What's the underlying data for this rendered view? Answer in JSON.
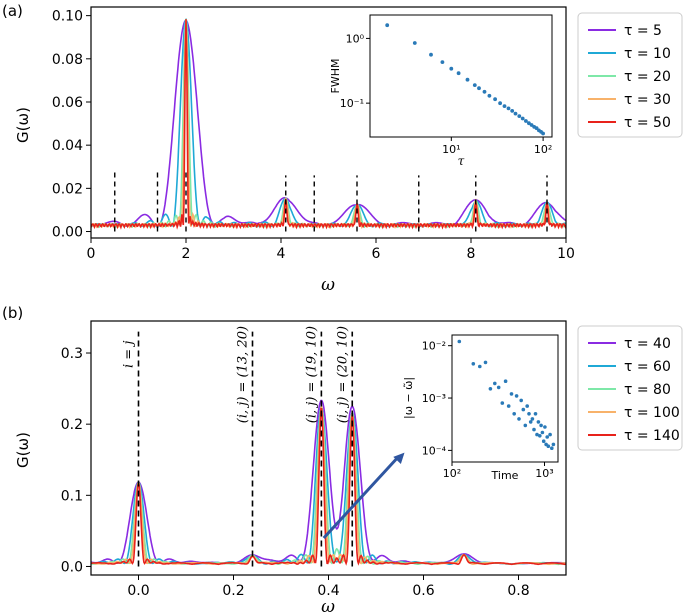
{
  "panels": [
    {
      "label": "(a)"
    },
    {
      "label": "(b)"
    }
  ],
  "chart_data": [
    {
      "type": "line",
      "xlabel": "ω",
      "ylabel": "G(ω)",
      "xlim": [
        0,
        10
      ],
      "ylim": [
        -0.003,
        0.104
      ],
      "xticks": [
        0,
        2,
        4,
        6,
        8,
        10
      ],
      "xtick_labels": [
        "0",
        "2",
        "4",
        "6",
        "8",
        "10"
      ],
      "yticks": [
        0,
        0.02,
        0.04,
        0.06,
        0.08,
        0.1
      ],
      "ytick_labels": [
        "0.00",
        "0.02",
        "0.04",
        "0.06",
        "0.08",
        "0.10"
      ],
      "legend_position": "right-outside",
      "series": [
        {
          "name": "τ = 5",
          "color": "#8a2be2",
          "tau": 5
        },
        {
          "name": "τ = 10",
          "color": "#1fa9d6",
          "tau": 10
        },
        {
          "name": "τ = 20",
          "color": "#7ee8a8",
          "tau": 20
        },
        {
          "name": "τ = 30",
          "color": "#f8b26a",
          "tau": 30
        },
        {
          "name": "τ = 50",
          "color": "#e8221b",
          "tau": 50
        }
      ],
      "peaks": [
        {
          "x": 2.0,
          "height": 0.095
        },
        {
          "x": 4.1,
          "height": 0.012
        },
        {
          "x": 5.6,
          "height": 0.01
        },
        {
          "x": 8.1,
          "height": 0.011
        },
        {
          "x": 9.6,
          "height": 0.01
        }
      ],
      "dashed_lines": [
        {
          "x": 0.5,
          "top": 0.029
        },
        {
          "x": 1.4,
          "top": 0.029
        },
        {
          "x": 2.0,
          "top": 0.029
        },
        {
          "x": 4.1,
          "top": 0.026
        },
        {
          "x": 4.7,
          "top": 0.026
        },
        {
          "x": 5.6,
          "top": 0.026
        },
        {
          "x": 6.9,
          "top": 0.026
        },
        {
          "x": 8.1,
          "top": 0.026
        },
        {
          "x": 9.6,
          "top": 0.026
        }
      ],
      "inset": {
        "type": "scatter",
        "xlabel": "τ",
        "ylabel": "FWHM",
        "xscale": "log",
        "yscale": "log",
        "xlim": [
          1.3,
          125
        ],
        "ylim": [
          0.03,
          2.3
        ],
        "xticks": [
          10,
          100
        ],
        "xtick_labels": [
          "10¹",
          "10²"
        ],
        "yticks": [
          0.1,
          1
        ],
        "ytick_labels": [
          "10⁻¹",
          "10⁰"
        ],
        "x": [
          2,
          4,
          6,
          8,
          10,
          12,
          15,
          18,
          20,
          23,
          26,
          30,
          34,
          38,
          42,
          46,
          50,
          55,
          60,
          65,
          70,
          75,
          80,
          85,
          90,
          95,
          100
        ],
        "y": [
          1.6,
          0.85,
          0.56,
          0.43,
          0.34,
          0.29,
          0.23,
          0.19,
          0.17,
          0.15,
          0.13,
          0.115,
          0.1,
          0.09,
          0.083,
          0.076,
          0.069,
          0.063,
          0.058,
          0.053,
          0.049,
          0.046,
          0.043,
          0.041,
          0.038,
          0.036,
          0.034
        ],
        "color": "#2a7ab8"
      }
    },
    {
      "type": "line",
      "xlabel": "ω",
      "ylabel": "G(ω)",
      "xlim": [
        -0.1,
        0.9
      ],
      "ylim": [
        -0.012,
        0.345
      ],
      "xticks": [
        0.0,
        0.2,
        0.4,
        0.6,
        0.8
      ],
      "xtick_labels": [
        "0.0",
        "0.2",
        "0.4",
        "0.6",
        "0.8"
      ],
      "yticks": [
        0.0,
        0.1,
        0.2,
        0.3
      ],
      "ytick_labels": [
        "0.0",
        "0.1",
        "0.2",
        "0.3"
      ],
      "legend_position": "right-outside",
      "series": [
        {
          "name": "τ = 40",
          "color": "#8a2be2",
          "tau": 40
        },
        {
          "name": "τ = 60",
          "color": "#1fa9d6",
          "tau": 60
        },
        {
          "name": "τ = 80",
          "color": "#7ee8a8",
          "tau": 80
        },
        {
          "name": "τ = 100",
          "color": "#f8b26a",
          "tau": 100
        },
        {
          "name": "τ = 140",
          "color": "#e8221b",
          "tau": 140
        }
      ],
      "peaks": [
        {
          "x": 0.0,
          "height": 0.115
        },
        {
          "x": 0.385,
          "height": 0.22
        },
        {
          "x": 0.45,
          "height": 0.21
        },
        {
          "x": 0.24,
          "height": 0.01
        },
        {
          "x": 0.685,
          "height": 0.012
        }
      ],
      "dashed_lines": [
        {
          "x": 0.0,
          "top": 0.33,
          "annotation": "i = j"
        },
        {
          "x": 0.24,
          "top": 0.33,
          "annotation": "(i, j) = (13, 20)"
        },
        {
          "x": 0.385,
          "top": 0.33,
          "annotation": "(i, j) = (19, 10)"
        },
        {
          "x": 0.45,
          "top": 0.33,
          "annotation": "(i, j) = (20, 10)"
        }
      ],
      "arrow": {
        "from": [
          0.39,
          0.04
        ],
        "to": [
          0.56,
          0.16
        ],
        "color": "#2f56a0"
      },
      "inset": {
        "type": "scatter",
        "xlabel": "Time",
        "ylabel": "|ω − ω̃|",
        "xscale": "log",
        "yscale": "log",
        "xlim": [
          100,
          1400
        ],
        "ylim": [
          6e-05,
          0.016
        ],
        "xticks": [
          100,
          1000
        ],
        "xtick_labels": [
          "10²",
          "10³"
        ],
        "yticks": [
          0.0001,
          0.001,
          0.01
        ],
        "ytick_labels": [
          "10⁻⁴",
          "10⁻³",
          "10⁻²"
        ],
        "x": [
          120,
          170,
          200,
          230,
          260,
          290,
          320,
          350,
          380,
          410,
          440,
          470,
          500,
          530,
          560,
          590,
          620,
          650,
          680,
          710,
          740,
          770,
          800,
          830,
          860,
          890,
          920,
          950,
          980,
          1010,
          1040,
          1070,
          1100,
          1150,
          1200,
          1250
        ],
        "y": [
          0.012,
          0.0045,
          0.004,
          0.0048,
          0.0015,
          0.0019,
          0.0016,
          0.0008,
          0.0021,
          0.0007,
          0.0012,
          0.0005,
          0.0011,
          0.0004,
          0.0009,
          0.0006,
          0.0003,
          0.0007,
          0.0005,
          0.00035,
          0.0004,
          0.00025,
          0.0005,
          0.0002,
          0.00035,
          0.00019,
          0.0003,
          0.00022,
          0.00015,
          0.00028,
          0.00013,
          0.00018,
          0.00012,
          0.0002,
          0.00011,
          0.00013
        ],
        "color": "#2a7ab8"
      }
    }
  ]
}
